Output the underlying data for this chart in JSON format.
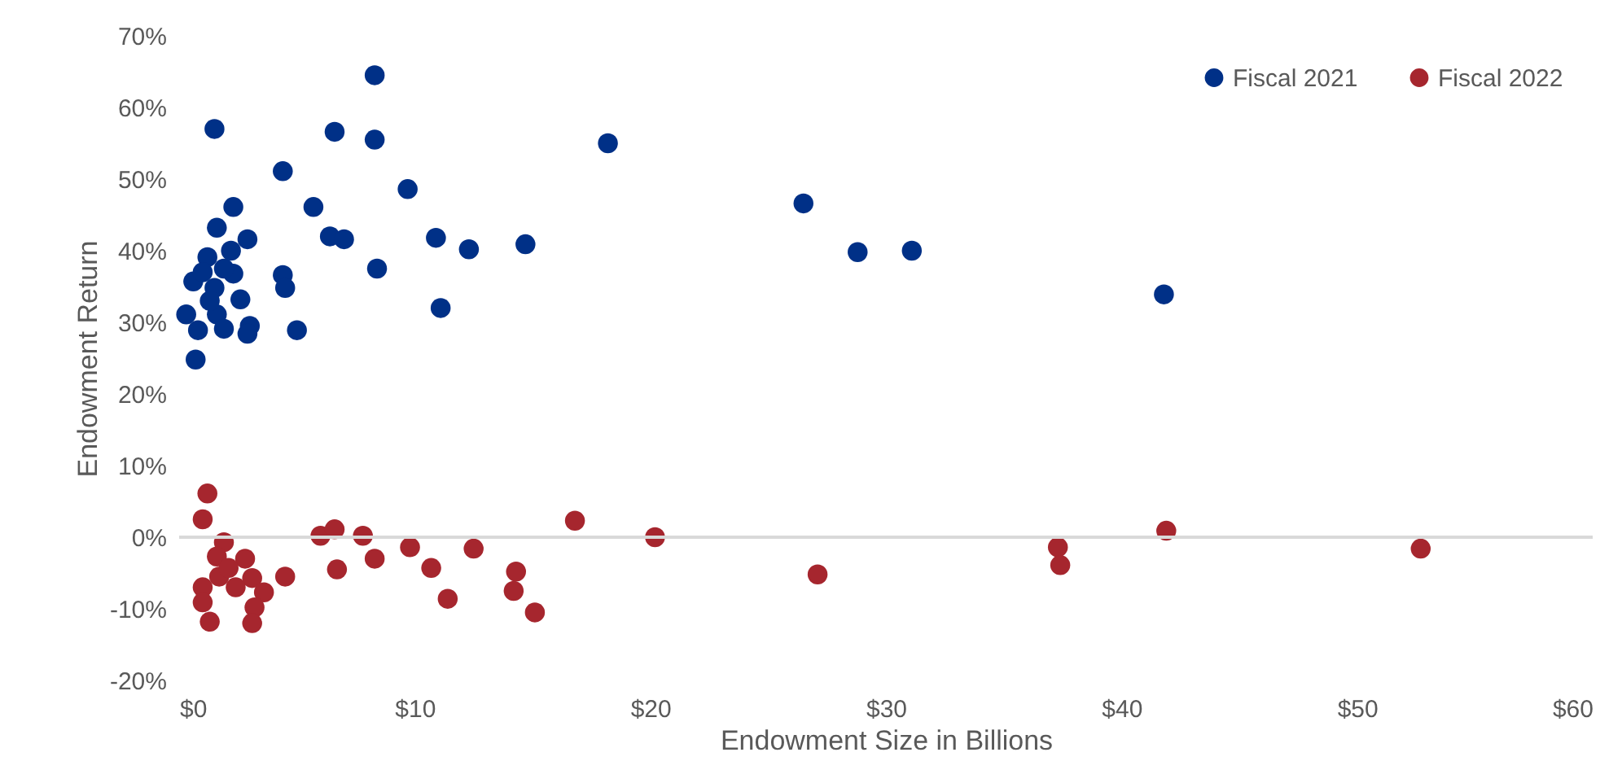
{
  "chart_data": {
    "type": "scatter",
    "xlabel": "Endowment Size in Billions",
    "ylabel": "Endowment Return",
    "xlim": [
      0,
      60
    ],
    "ylim": [
      -20,
      70
    ],
    "xticks": [
      {
        "value": 0,
        "label": "$0"
      },
      {
        "value": 10,
        "label": "$10"
      },
      {
        "value": 20,
        "label": "$20"
      },
      {
        "value": 30,
        "label": "$30"
      },
      {
        "value": 40,
        "label": "$40"
      },
      {
        "value": 50,
        "label": "$50"
      },
      {
        "value": 60,
        "label": "$60"
      }
    ],
    "yticks": [
      {
        "value": -20,
        "label": "-20%"
      },
      {
        "value": -10,
        "label": "-10%"
      },
      {
        "value": 0,
        "label": "0%"
      },
      {
        "value": 10,
        "label": "10%"
      },
      {
        "value": 20,
        "label": "20%"
      },
      {
        "value": 30,
        "label": "30%"
      },
      {
        "value": 40,
        "label": "40%"
      },
      {
        "value": 50,
        "label": "50%"
      },
      {
        "value": 60,
        "label": "60%"
      },
      {
        "value": 70,
        "label": "70%"
      }
    ],
    "grid": false,
    "legend": "top right",
    "marker": "circle",
    "ref_lines": [
      {
        "axis": "y",
        "value": 0,
        "color": "#d9d9d9"
      }
    ],
    "series": [
      {
        "name": "Fiscal 2021",
        "color": "#003087",
        "x": [
          1.5,
          6.6,
          8.3,
          8.3,
          4.4,
          9.7,
          5.7,
          2.3,
          6.4,
          7.0,
          10.9,
          12.3,
          14.7,
          18.2,
          26.5,
          28.8,
          31.1,
          41.8,
          1.6,
          2.9,
          1.2,
          2.3,
          4.4,
          4.5,
          8.4,
          0.6,
          1.5,
          2.6,
          11.1,
          0.3,
          1.6,
          1.9,
          3.0,
          2.9,
          5.0,
          0.8,
          0.7,
          1.0,
          1.9,
          2.2,
          1.3
        ],
        "values": [
          57.0,
          56.6,
          55.5,
          64.5,
          51.1,
          48.6,
          46.1,
          46.1,
          42.0,
          41.6,
          41.8,
          40.2,
          40.9,
          55.0,
          46.6,
          39.8,
          40.0,
          33.9,
          43.2,
          41.6,
          39.1,
          36.8,
          36.6,
          34.8,
          37.5,
          35.7,
          34.8,
          33.2,
          32.0,
          31.1,
          31.1,
          29.1,
          29.5,
          28.4,
          28.9,
          28.9,
          24.8,
          37.0,
          37.5,
          40.0,
          33.0
        ]
      },
      {
        "name": "Fiscal 2022",
        "color": "#a6262e",
        "x": [
          1.2,
          1.0,
          6.0,
          6.6,
          7.8,
          9.8,
          12.5,
          16.8,
          20.2,
          1.9,
          1.6,
          2.8,
          6.7,
          8.3,
          10.7,
          14.3,
          1.7,
          3.1,
          4.5,
          2.4,
          3.6,
          1.0,
          1.0,
          11.4,
          14.2,
          15.1,
          1.3,
          3.2,
          3.1,
          2.1,
          27.1,
          37.3,
          37.4,
          41.9,
          52.7
        ],
        "values": [
          6.1,
          2.5,
          0.2,
          1.1,
          0.2,
          -1.4,
          -1.6,
          2.3,
          0.0,
          -0.7,
          -2.7,
          -3.0,
          -4.5,
          -3.0,
          -4.3,
          -4.8,
          -5.5,
          -5.7,
          -5.5,
          -7.0,
          -7.7,
          -7.0,
          -9.1,
          -8.6,
          -7.5,
          -10.5,
          -11.8,
          -9.8,
          -12.0,
          -4.3,
          -5.2,
          -1.4,
          -3.9,
          0.9,
          -1.6
        ]
      }
    ]
  }
}
